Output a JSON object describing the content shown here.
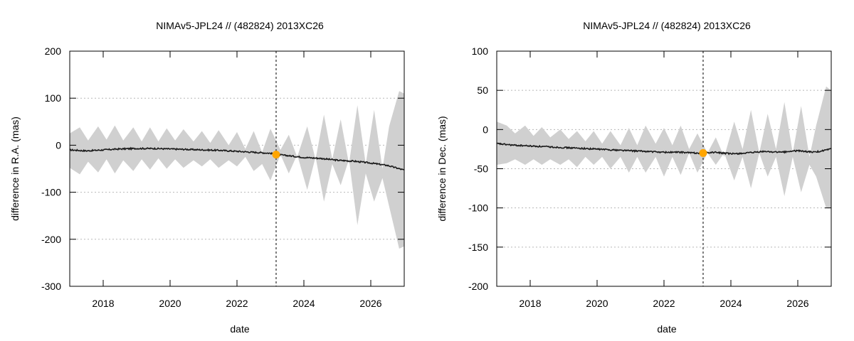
{
  "chart_data": [
    {
      "type": "line",
      "title": "NIMAv5-JPL24 // (482824) 2013XC26",
      "xlabel": "date",
      "ylabel": "difference in R.A. (mas)",
      "xlim": [
        2017.0,
        2027.0
      ],
      "ylim": [
        -300,
        200
      ],
      "xticks": [
        2018,
        2020,
        2022,
        2024,
        2026
      ],
      "xtick_labels": [
        "2018",
        "2020",
        "2022",
        "2024",
        "2026"
      ],
      "yticks": [
        -300,
        -200,
        -100,
        0,
        100,
        200
      ],
      "ytick_labels": [
        "-300",
        "-200",
        "-100",
        "0",
        "100",
        "200"
      ],
      "grid": true,
      "vline_x": 2023.17,
      "marker": {
        "x": 2023.17,
        "y": -20,
        "color": "#ffa500"
      },
      "band_color": "#d0d0d0",
      "line_color": "#1a1a1a",
      "series": [
        {
          "name": "mean",
          "x": [
            2017.0,
            2017.5,
            2018.0,
            2018.5,
            2019.0,
            2019.5,
            2020.0,
            2020.5,
            2021.0,
            2021.5,
            2022.0,
            2022.5,
            2023.0,
            2023.17,
            2023.5,
            2024.0,
            2024.5,
            2025.0,
            2025.5,
            2026.0,
            2026.5,
            2027.0
          ],
          "y": [
            -10,
            -12,
            -10,
            -8,
            -7,
            -7,
            -8,
            -9,
            -10,
            -11,
            -13,
            -15,
            -17,
            -20,
            -22,
            -26,
            -28,
            -32,
            -34,
            -38,
            -43,
            -53
          ]
        },
        {
          "name": "upper",
          "x": [
            2017.0,
            2017.3,
            2017.55,
            2017.85,
            2018.1,
            2018.35,
            2018.6,
            2018.9,
            2019.15,
            2019.4,
            2019.65,
            2019.9,
            2020.15,
            2020.4,
            2020.7,
            2020.95,
            2021.2,
            2021.45,
            2021.75,
            2022.0,
            2022.25,
            2022.5,
            2022.75,
            2023.0,
            2023.3,
            2023.55,
            2023.8,
            2024.1,
            2024.35,
            2024.6,
            2024.85,
            2025.1,
            2025.35,
            2025.6,
            2025.85,
            2026.1,
            2026.35,
            2026.55,
            2026.85,
            2027.0
          ],
          "y": [
            25,
            38,
            10,
            40,
            12,
            42,
            10,
            38,
            8,
            38,
            8,
            36,
            10,
            34,
            8,
            30,
            5,
            32,
            0,
            28,
            -8,
            30,
            -15,
            35,
            -10,
            22,
            -25,
            40,
            -30,
            65,
            -30,
            55,
            -40,
            85,
            -40,
            75,
            -50,
            40,
            115,
            110
          ]
        },
        {
          "name": "lower",
          "x": [
            2017.0,
            2017.3,
            2017.55,
            2017.85,
            2018.1,
            2018.35,
            2018.6,
            2018.9,
            2019.15,
            2019.4,
            2019.65,
            2019.9,
            2020.15,
            2020.4,
            2020.7,
            2020.95,
            2021.2,
            2021.45,
            2021.75,
            2022.0,
            2022.25,
            2022.5,
            2022.75,
            2023.0,
            2023.3,
            2023.55,
            2023.8,
            2024.1,
            2024.35,
            2024.6,
            2024.85,
            2025.1,
            2025.35,
            2025.6,
            2025.85,
            2026.1,
            2026.35,
            2026.55,
            2026.85,
            2027.0
          ],
          "y": [
            -48,
            -62,
            -35,
            -58,
            -30,
            -60,
            -32,
            -55,
            -30,
            -52,
            -28,
            -50,
            -30,
            -48,
            -32,
            -45,
            -30,
            -48,
            -32,
            -45,
            -25,
            -55,
            -40,
            -75,
            -20,
            -60,
            -20,
            -95,
            -25,
            -120,
            -40,
            -85,
            -30,
            -170,
            -60,
            -120,
            -70,
            -130,
            -220,
            -215
          ]
        }
      ]
    },
    {
      "type": "line",
      "title": "NIMAv5-JPL24 // (482824) 2013XC26",
      "xlabel": "date",
      "ylabel": "difference in Dec. (mas)",
      "xlim": [
        2017.0,
        2027.0
      ],
      "ylim": [
        -200,
        100
      ],
      "xticks": [
        2018,
        2020,
        2022,
        2024,
        2026
      ],
      "xtick_labels": [
        "2018",
        "2020",
        "2022",
        "2024",
        "2026"
      ],
      "yticks": [
        -200,
        -150,
        -100,
        -50,
        0,
        50,
        100
      ],
      "ytick_labels": [
        "-200",
        "-150",
        "-100",
        "-50",
        "0",
        "50",
        "100"
      ],
      "grid": true,
      "vline_x": 2023.17,
      "marker": {
        "x": 2023.17,
        "y": -30,
        "color": "#ffa500"
      },
      "band_color": "#d0d0d0",
      "line_color": "#1a1a1a",
      "series": [
        {
          "name": "mean",
          "x": [
            2017.0,
            2017.5,
            2018.0,
            2018.5,
            2019.0,
            2019.5,
            2020.0,
            2020.5,
            2021.0,
            2021.5,
            2022.0,
            2022.5,
            2023.0,
            2023.17,
            2023.5,
            2024.0,
            2024.5,
            2025.0,
            2025.5,
            2026.0,
            2026.5,
            2027.0
          ],
          "y": [
            -18,
            -20,
            -21,
            -22,
            -23,
            -24,
            -25,
            -26,
            -27,
            -28,
            -29,
            -29,
            -30,
            -30,
            -29,
            -31,
            -30,
            -28,
            -29,
            -27,
            -29,
            -25
          ]
        },
        {
          "name": "upper",
          "x": [
            2017.0,
            2017.3,
            2017.55,
            2017.85,
            2018.1,
            2018.35,
            2018.6,
            2018.9,
            2019.15,
            2019.4,
            2019.65,
            2019.9,
            2020.15,
            2020.4,
            2020.7,
            2020.95,
            2021.2,
            2021.45,
            2021.75,
            2022.0,
            2022.25,
            2022.5,
            2022.75,
            2023.0,
            2023.3,
            2023.55,
            2023.8,
            2024.1,
            2024.35,
            2024.6,
            2024.85,
            2025.1,
            2025.35,
            2025.6,
            2025.85,
            2026.1,
            2026.35,
            2026.55,
            2026.85,
            2027.0
          ],
          "y": [
            10,
            5,
            -5,
            5,
            -8,
            3,
            -10,
            0,
            -12,
            -2,
            -15,
            -2,
            -18,
            -2,
            -20,
            2,
            -20,
            5,
            -18,
            2,
            -20,
            5,
            -25,
            -5,
            -30,
            -10,
            -35,
            10,
            -25,
            25,
            -30,
            20,
            -25,
            35,
            -30,
            30,
            -35,
            5,
            55,
            50
          ]
        },
        {
          "name": "lower",
          "x": [
            2017.0,
            2017.3,
            2017.55,
            2017.85,
            2018.1,
            2018.35,
            2018.6,
            2018.9,
            2019.15,
            2019.4,
            2019.65,
            2019.9,
            2020.15,
            2020.4,
            2020.7,
            2020.95,
            2021.2,
            2021.45,
            2021.75,
            2022.0,
            2022.25,
            2022.5,
            2022.75,
            2023.0,
            2023.3,
            2023.55,
            2023.8,
            2024.1,
            2024.35,
            2024.6,
            2024.85,
            2025.1,
            2025.35,
            2025.6,
            2025.85,
            2026.1,
            2026.35,
            2026.55,
            2026.85,
            2027.0
          ],
          "y": [
            -45,
            -43,
            -38,
            -45,
            -38,
            -45,
            -38,
            -45,
            -38,
            -48,
            -35,
            -45,
            -35,
            -50,
            -35,
            -55,
            -35,
            -55,
            -35,
            -60,
            -35,
            -58,
            -30,
            -55,
            -30,
            -45,
            -30,
            -65,
            -35,
            -75,
            -30,
            -60,
            -35,
            -85,
            -35,
            -80,
            -45,
            -60,
            -100,
            -100
          ]
        }
      ]
    }
  ]
}
